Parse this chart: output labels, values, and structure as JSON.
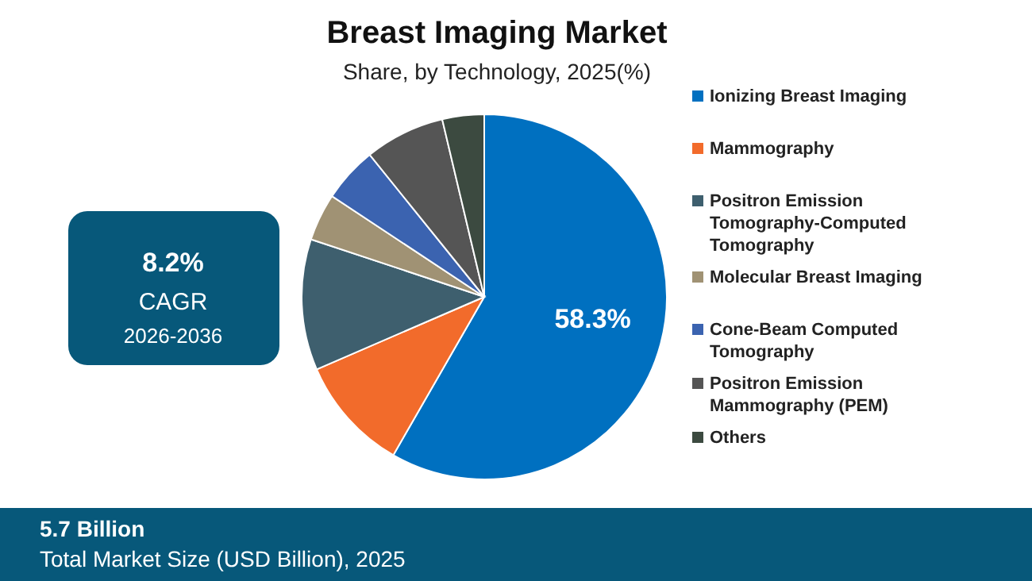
{
  "chart_data": {
    "type": "pie",
    "title": "Breast Imaging Market",
    "subtitle": "Share, by Technology, 2025(%)",
    "categories": [
      "Ionizing Breast Imaging",
      "Mammography",
      "Positron Emission Tomography-Computed Tomography",
      "Molecular Breast Imaging",
      "Cone-Beam Computed Tomography",
      "Positron Emission Mammography (PEM)",
      "Others"
    ],
    "values": [
      58.3,
      10.2,
      11.6,
      4.2,
      4.9,
      7.1,
      3.7
    ],
    "colors": [
      "#0070c0",
      "#f26b2b",
      "#3e5f6e",
      "#a09274",
      "#3b63b0",
      "#555555",
      "#3c4a40"
    ],
    "value_labels": [
      "58.3%",
      null,
      null,
      null,
      null,
      null,
      null
    ],
    "legend": "right",
    "annotations": [
      "8.2%",
      "CAGR",
      "2026-2036",
      "5.7 Billion",
      "Total Market Size (USD Billion), 2025"
    ]
  }
}
